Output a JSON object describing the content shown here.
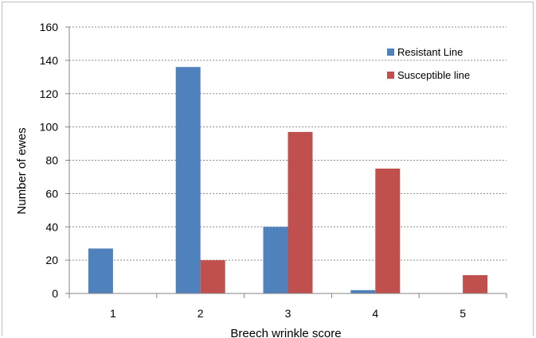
{
  "chart_data": {
    "type": "bar",
    "title": "",
    "xlabel": "Breech wrinkle score",
    "ylabel": "Number of ewes",
    "categories": [
      "1",
      "2",
      "3",
      "4",
      "5"
    ],
    "series": [
      {
        "name": "Resistant Line",
        "color": "#4f81bd",
        "values": [
          27,
          136,
          40,
          2,
          0
        ]
      },
      {
        "name": "Susceptible line",
        "color": "#c0504d",
        "values": [
          0,
          20,
          97,
          75,
          11
        ]
      }
    ],
    "ylim": [
      0,
      160
    ],
    "yticks": [
      "0",
      "20",
      "40",
      "60",
      "80",
      "100",
      "120",
      "140",
      "160"
    ],
    "grid": true,
    "legend": "top-right"
  }
}
